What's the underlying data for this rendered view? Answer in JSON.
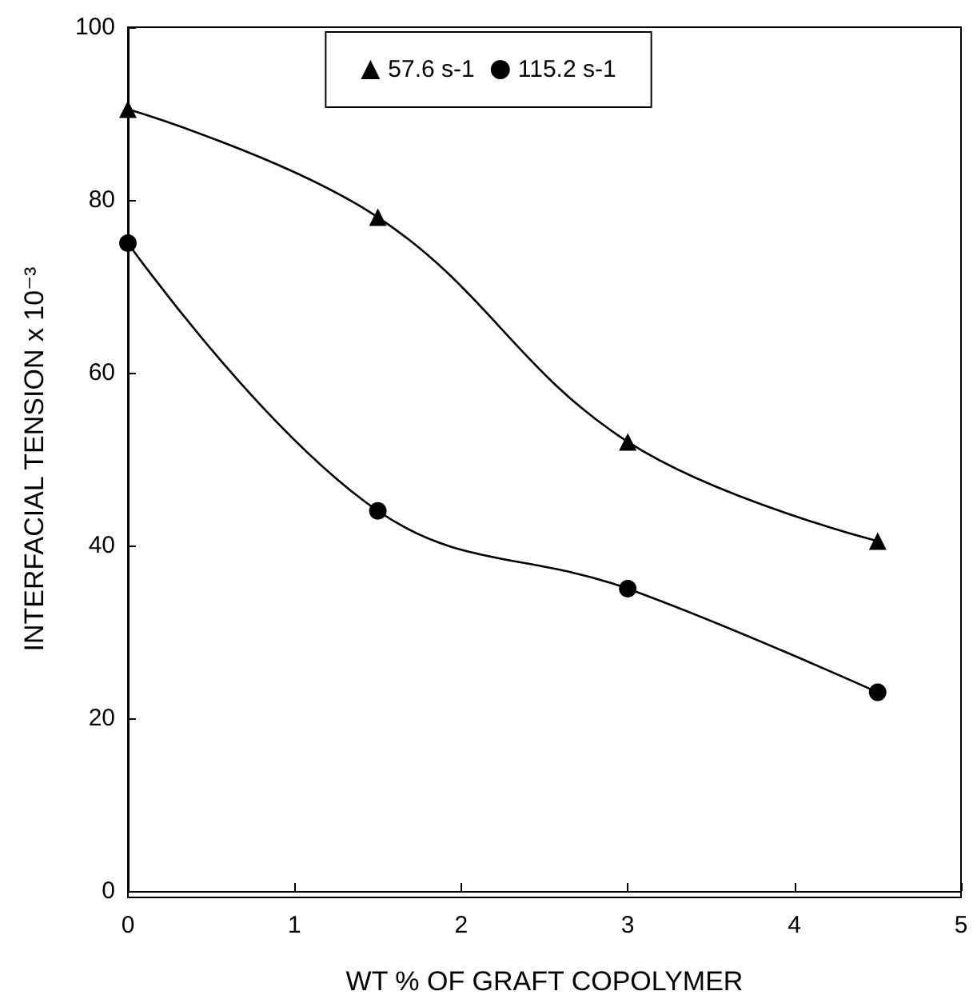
{
  "chart_data": {
    "type": "line",
    "xlabel": "WT % OF GRAFT COPOLYMER",
    "ylabel": "INTERFACIAL TENSION x 10⁻³",
    "x": [
      0,
      1.5,
      3,
      4.5
    ],
    "series": [
      {
        "name": "57.6 s-1",
        "color": "#000000",
        "marker": "triangle",
        "values": [
          90.5,
          78,
          52,
          40.5
        ]
      },
      {
        "name": "115.2 s-1",
        "color": "#000000",
        "marker": "circle",
        "values": [
          75,
          44,
          35,
          23
        ]
      }
    ],
    "xlim": [
      0,
      5
    ],
    "xticks": [
      0,
      1,
      2,
      3,
      4,
      5
    ],
    "ylim": [
      0,
      100
    ],
    "yticks": [
      0,
      20,
      40,
      60,
      80,
      100
    ],
    "grid": false,
    "legend": "top",
    "line_style": "solid"
  }
}
